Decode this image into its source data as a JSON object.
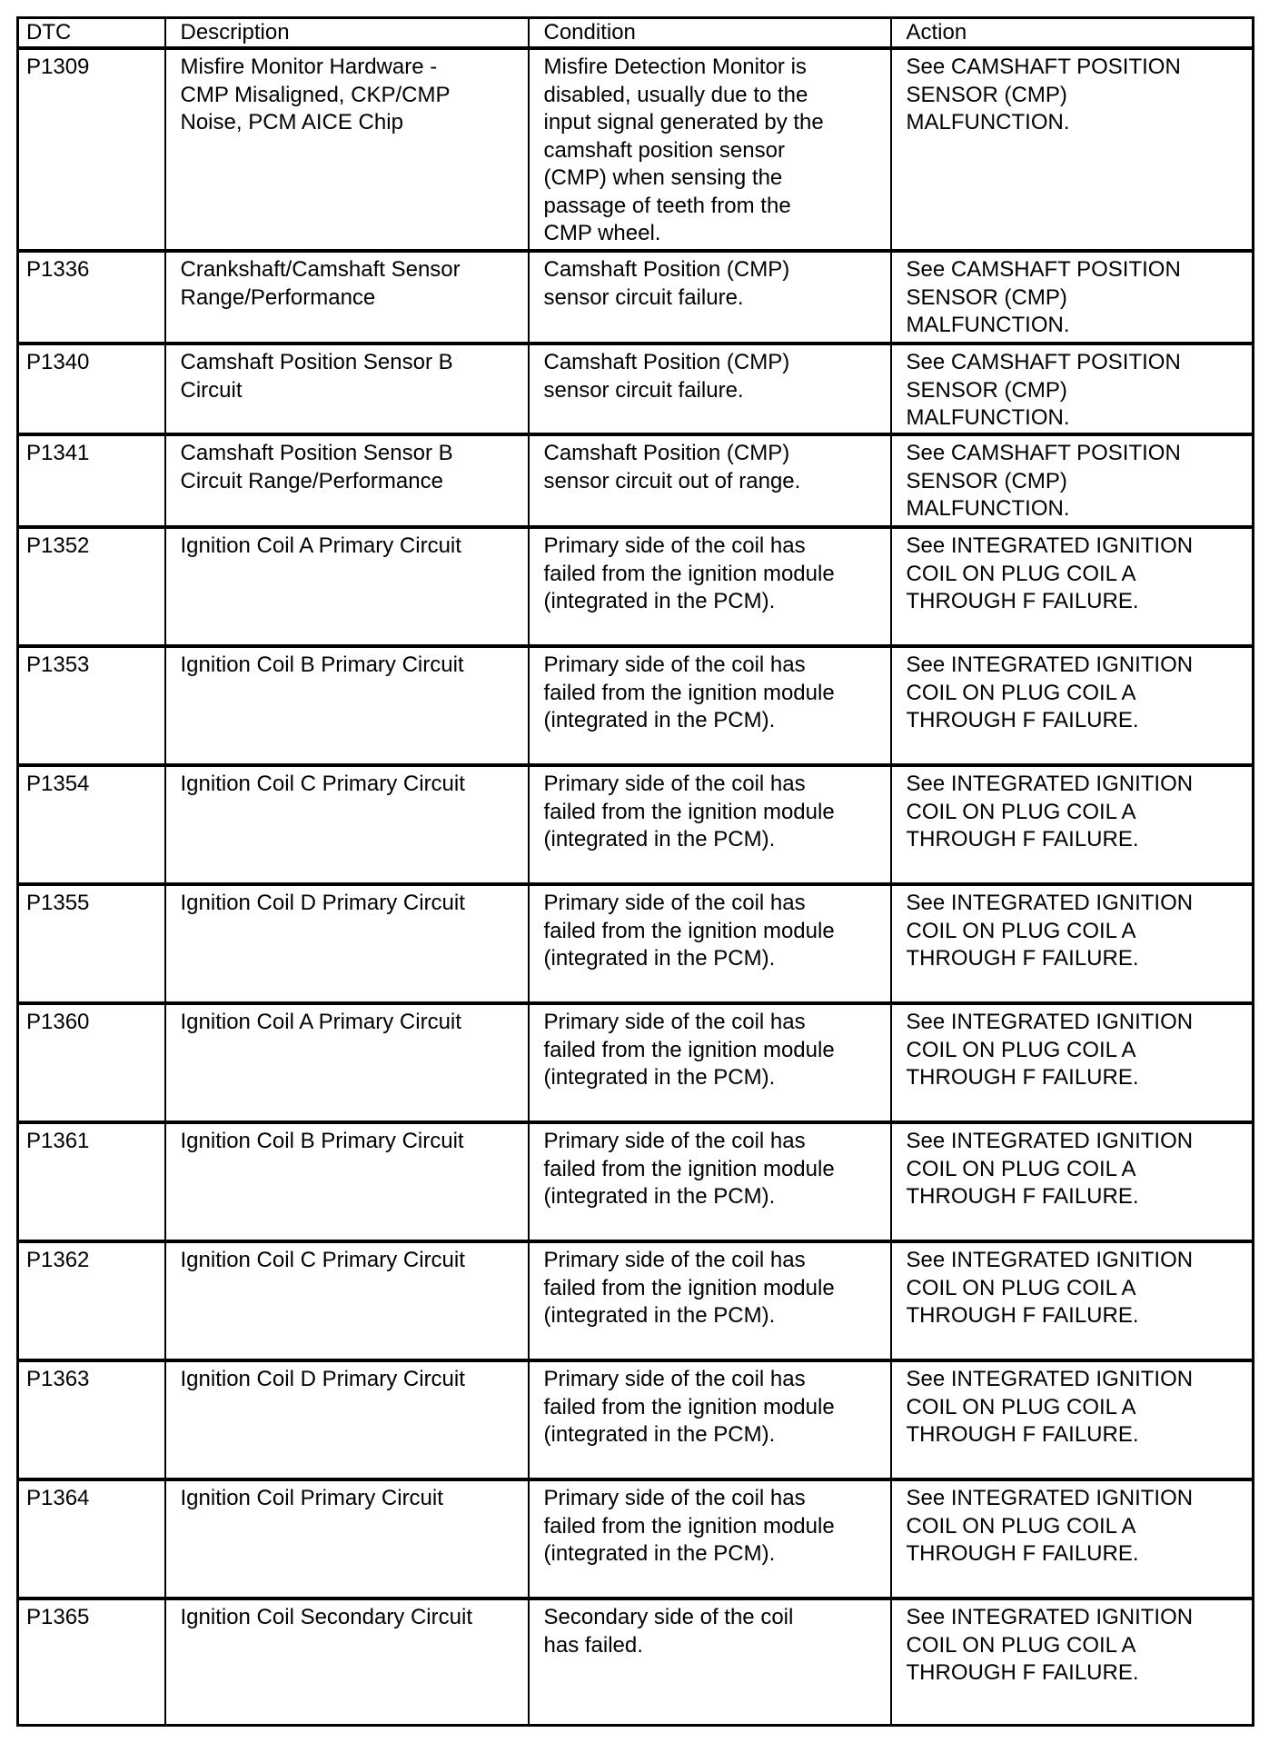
{
  "headers": [
    "DTC",
    "Description",
    "Condition",
    "Action"
  ],
  "rows": [
    {
      "dtc": "P1309",
      "description": [
        "Misfire Monitor Hardware -",
        "CMP Misaligned, CKP/CMP",
        "Noise, PCM AICE Chip"
      ],
      "condition": [
        "Misfire Detection Monitor is",
        "disabled, usually due to the",
        "input signal generated by the",
        "camshaft position sensor",
        "(CMP) when sensing the",
        "passage of teeth from the",
        "CMP wheel."
      ],
      "action": [
        "See CAMSHAFT POSITION",
        "SENSOR (CMP)",
        "MALFUNCTION."
      ]
    },
    {
      "dtc": "P1336",
      "description": [
        "Crankshaft/Camshaft Sensor",
        "Range/Performance"
      ],
      "condition": [
        "Camshaft Position (CMP)",
        "sensor circuit failure."
      ],
      "action": [
        "See CAMSHAFT POSITION",
        "SENSOR (CMP)",
        "MALFUNCTION."
      ]
    },
    {
      "dtc": "P1340",
      "description": [
        "Camshaft Position Sensor B",
        "Circuit"
      ],
      "condition": [
        "Camshaft Position (CMP)",
        "sensor circuit failure."
      ],
      "action": [
        "See CAMSHAFT POSITION",
        "SENSOR (CMP)",
        "MALFUNCTION."
      ]
    },
    {
      "dtc": "P1341",
      "description": [
        "Camshaft Position Sensor B",
        "Circuit Range/Performance"
      ],
      "condition": [
        "Camshaft Position (CMP)",
        "sensor circuit out of range."
      ],
      "action": [
        "See CAMSHAFT POSITION",
        "SENSOR (CMP)",
        "MALFUNCTION."
      ]
    },
    {
      "dtc": "P1352",
      "description": [
        "Ignition Coil A Primary Circuit"
      ],
      "condition": [
        "Primary side of the coil has",
        "failed from the ignition module",
        "(integrated in the PCM)."
      ],
      "action": [
        "See INTEGRATED IGNITION",
        "COIL ON PLUG COIL A",
        "THROUGH F FAILURE."
      ]
    },
    {
      "dtc": "P1353",
      "description": [
        "Ignition Coil B Primary Circuit"
      ],
      "condition": [
        "Primary side of the coil has",
        "failed from the ignition module",
        "(integrated in the PCM)."
      ],
      "action": [
        "See INTEGRATED IGNITION",
        "COIL ON PLUG COIL A",
        "THROUGH F FAILURE."
      ]
    },
    {
      "dtc": "P1354",
      "description": [
        "Ignition Coil C Primary Circuit"
      ],
      "condition": [
        "Primary side of the coil has",
        "failed from the ignition module",
        "(integrated in the PCM)."
      ],
      "action": [
        "See INTEGRATED IGNITION",
        "COIL ON PLUG COIL A",
        "THROUGH F FAILURE."
      ]
    },
    {
      "dtc": "P1355",
      "description": [
        "Ignition Coil D Primary Circuit"
      ],
      "condition": [
        "Primary side of the coil has",
        "failed from the ignition module",
        "(integrated in the PCM)."
      ],
      "action": [
        "See INTEGRATED IGNITION",
        "COIL ON PLUG COIL A",
        "THROUGH F FAILURE."
      ]
    },
    {
      "dtc": "P1360",
      "description": [
        "Ignition Coil A Primary Circuit"
      ],
      "condition": [
        "Primary side of the coil has",
        "failed from the ignition module",
        "(integrated in the PCM)."
      ],
      "action": [
        "See INTEGRATED IGNITION",
        "COIL ON PLUG COIL A",
        "THROUGH F FAILURE."
      ]
    },
    {
      "dtc": "P1361",
      "description": [
        "Ignition Coil B Primary Circuit"
      ],
      "condition": [
        "Primary side of the coil has",
        "failed from the ignition module",
        "(integrated in the PCM)."
      ],
      "action": [
        "See INTEGRATED IGNITION",
        "COIL ON PLUG COIL A",
        "THROUGH F FAILURE."
      ]
    },
    {
      "dtc": "P1362",
      "description": [
        "Ignition Coil C Primary Circuit"
      ],
      "condition": [
        "Primary side of the coil has",
        "failed from the ignition module",
        "(integrated in the PCM)."
      ],
      "action": [
        "See INTEGRATED IGNITION",
        "COIL ON PLUG COIL A",
        "THROUGH F FAILURE."
      ]
    },
    {
      "dtc": "P1363",
      "description": [
        "Ignition Coil D Primary Circuit"
      ],
      "condition": [
        "Primary side of the coil has",
        "failed from the ignition module",
        "(integrated in the PCM)."
      ],
      "action": [
        "See INTEGRATED IGNITION",
        "COIL ON PLUG COIL A",
        "THROUGH F FAILURE."
      ]
    },
    {
      "dtc": "P1364",
      "description": [
        "Ignition Coil Primary Circuit"
      ],
      "condition": [
        "Primary side of the coil has",
        "failed from the ignition module",
        "(integrated in the PCM)."
      ],
      "action": [
        "See INTEGRATED IGNITION",
        "COIL ON PLUG COIL A",
        "THROUGH F FAILURE."
      ]
    },
    {
      "dtc": "P1365",
      "description": [
        "Ignition Coil Secondary Circuit"
      ],
      "condition": [
        "Secondary side of the coil",
        "has failed."
      ],
      "action": [
        "See INTEGRATED IGNITION",
        "COIL ON PLUG COIL A",
        "THROUGH F FAILURE."
      ]
    }
  ]
}
